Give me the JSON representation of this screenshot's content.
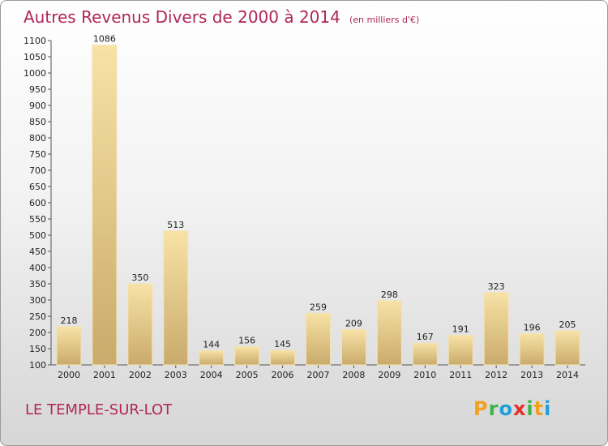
{
  "title": {
    "main": "Autres Revenus Divers de 2000 à 2014",
    "sub": "(en milliers d'€)"
  },
  "commune": "LE TEMPLE-SUR-LOT",
  "logo": {
    "letters": [
      "P",
      "r",
      "o",
      "x",
      "i",
      "t",
      "i"
    ],
    "colors": [
      "#f2a11f",
      "#3db34a",
      "#1f9fd8",
      "#e52e2e",
      "#3db34a",
      "#f2a11f",
      "#1f9fd8"
    ]
  },
  "chart_data": {
    "type": "bar",
    "categories": [
      "2000",
      "2001",
      "2002",
      "2003",
      "2004",
      "2005",
      "2006",
      "2007",
      "2008",
      "2009",
      "2010",
      "2011",
      "2012",
      "2013",
      "2014"
    ],
    "values": [
      218,
      1086,
      350,
      513,
      144,
      156,
      145,
      259,
      209,
      298,
      167,
      191,
      323,
      196,
      205
    ],
    "ylim": [
      100,
      1100
    ],
    "yticks": [
      100,
      150,
      200,
      250,
      300,
      350,
      400,
      450,
      500,
      550,
      600,
      650,
      700,
      750,
      800,
      850,
      900,
      950,
      1000,
      1050,
      1100
    ],
    "grid": false,
    "bar_color": "#ebd08e"
  }
}
